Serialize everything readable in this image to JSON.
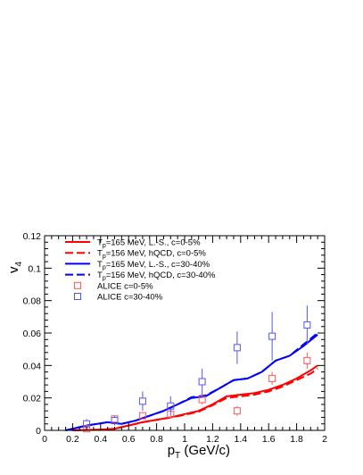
{
  "chart_data": {
    "type": "line",
    "xlabel_main": "p",
    "xlabel_sub": "T",
    "xlabel_unit": " (GeV/c)",
    "ylabel_main": "v",
    "ylabel_sub": "4",
    "xlim": [
      0,
      2
    ],
    "ylim": [
      0,
      0.12
    ],
    "x_ticks": [
      0,
      0.2,
      0.4,
      0.6,
      0.8,
      1,
      1.2,
      1.4,
      1.6,
      1.8,
      2
    ],
    "x_tick_labels": [
      "0",
      "0.2",
      "0.4",
      "0.6",
      "0.8",
      "1",
      "1.2",
      "1.4",
      "1.6",
      "1.8",
      "2"
    ],
    "y_ticks": [
      0,
      0.02,
      0.04,
      0.06,
      0.08,
      0.1,
      0.12
    ],
    "y_tick_labels": [
      "0",
      "0.02",
      "0.04",
      "0.06",
      "0.08",
      "0.1",
      "0.12"
    ],
    "grid": false,
    "legend_position": "top-left",
    "series": [
      {
        "legend_main": "T",
        "legend_sub": "p",
        "legend_rest": "=165 MeV, L.-S., c=0-5%",
        "color": "#ff0000",
        "dash": false,
        "x": [
          0.2,
          0.4,
          0.5,
          0.55,
          0.7,
          0.9,
          1.0,
          1.1,
          1.2,
          1.3,
          1.4,
          1.5,
          1.6,
          1.7,
          1.8,
          1.9,
          1.95
        ],
        "y": [
          0.0,
          0.0005,
          0.001,
          0.002,
          0.005,
          0.008,
          0.01,
          0.012,
          0.016,
          0.021,
          0.022,
          0.023,
          0.025,
          0.028,
          0.032,
          0.037,
          0.04
        ]
      },
      {
        "legend_main": "T",
        "legend_sub": "p",
        "legend_rest": "=156 MeV, hQCD, c=0-5%",
        "color": "#ff0000",
        "dash": true,
        "x": [
          0.2,
          0.4,
          0.5,
          0.55,
          0.7,
          0.9,
          1.0,
          1.1,
          1.2,
          1.3,
          1.4,
          1.5,
          1.6,
          1.7,
          1.8,
          1.9,
          1.95
        ],
        "y": [
          0.0,
          0.0005,
          0.001,
          0.002,
          0.005,
          0.008,
          0.0095,
          0.0115,
          0.0155,
          0.02,
          0.021,
          0.022,
          0.024,
          0.027,
          0.031,
          0.035,
          0.038
        ]
      },
      {
        "legend_main": "T",
        "legend_sub": "p",
        "legend_rest": "=165 MeV, L.-S., c=30-40%",
        "color": "#0000ff",
        "dash": false,
        "x": [
          0.15,
          0.3,
          0.45,
          0.55,
          0.65,
          0.75,
          0.85,
          0.95,
          1.05,
          1.15,
          1.25,
          1.35,
          1.45,
          1.55,
          1.65,
          1.75,
          1.85,
          1.95
        ],
        "y": [
          0.0,
          0.003,
          0.005,
          0.004,
          0.006,
          0.009,
          0.012,
          0.016,
          0.02,
          0.021,
          0.026,
          0.031,
          0.032,
          0.036,
          0.043,
          0.046,
          0.052,
          0.059
        ]
      },
      {
        "legend_main": "T",
        "legend_sub": "p",
        "legend_rest": "=156 MeV, hQCD, c=30-40%",
        "color": "#0000ff",
        "dash": true,
        "x": [
          0.15,
          0.3,
          0.45,
          0.55,
          0.65,
          0.75,
          0.85,
          0.95,
          1.05,
          1.15,
          1.25,
          1.35,
          1.45,
          1.55,
          1.65,
          1.75,
          1.85,
          1.95
        ],
        "y": [
          0.0,
          0.003,
          0.005,
          0.004,
          0.006,
          0.009,
          0.012,
          0.016,
          0.0205,
          0.0215,
          0.026,
          0.031,
          0.032,
          0.036,
          0.043,
          0.046,
          0.053,
          0.06
        ]
      }
    ],
    "points": [
      {
        "legend": "ALICE c=0-5%",
        "color": "#ff5555",
        "x": [
          0.3,
          0.5,
          0.7,
          0.9,
          1.125,
          1.375,
          1.625,
          1.875
        ],
        "y": [
          0.001,
          0.007,
          0.009,
          0.01,
          0.019,
          0.012,
          0.032,
          0.043
        ],
        "err": [
          0.002,
          0.002,
          0.002,
          0.002,
          0.003,
          0.003,
          0.004,
          0.005
        ]
      },
      {
        "legend": "ALICE c=30-40%",
        "color": "#5555ee",
        "x": [
          0.3,
          0.5,
          0.7,
          0.9,
          1.125,
          1.375,
          1.625,
          1.875
        ],
        "y": [
          0.004,
          0.006,
          0.018,
          0.015,
          0.03,
          0.051,
          0.058,
          0.065
        ],
        "err": [
          0.003,
          0.003,
          0.006,
          0.006,
          0.008,
          0.01,
          0.015,
          0.012
        ]
      }
    ]
  }
}
